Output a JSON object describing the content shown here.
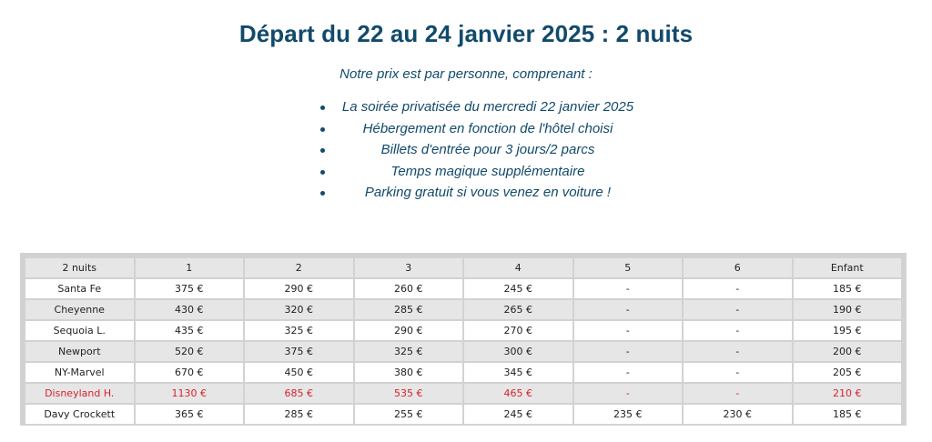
{
  "title": "Départ du 22 au 24 janvier 2025 : 2 nuits",
  "intro": "Notre prix est par personne, comprenant :",
  "bullets": [
    "La soirée privatisée du mercredi 22 janvier 2025",
    "Hébergement en fonction de l'hôtel choisi",
    "Billets d'entrée pour 3 jours/2 parcs",
    "Temps magique supplémentaire",
    "Parking gratuit si vous venez en voiture !"
  ],
  "colors": {
    "heading": "#124a6b",
    "highlight_row": "#d8222e",
    "table_border": "#d2d2d2",
    "row_alt": "#e6e6e6"
  },
  "table": {
    "headers": [
      "2 nuits",
      "1",
      "2",
      "3",
      "4",
      "5",
      "6",
      "Enfant"
    ],
    "rows": [
      [
        "Santa Fe",
        "375 €",
        "290 €",
        "260 €",
        "245 €",
        "-",
        "-",
        "185 €"
      ],
      [
        "Cheyenne",
        "430 €",
        "320 €",
        "285 €",
        "265 €",
        "-",
        "-",
        "190 €"
      ],
      [
        "Sequoia L.",
        "435 €",
        "325 €",
        "290 €",
        "270 €",
        "-",
        "-",
        "195 €"
      ],
      [
        "Newport",
        "520 €",
        "375 €",
        "325 €",
        "300 €",
        "-",
        "-",
        "200 €"
      ],
      [
        "NY-Marvel",
        "670 €",
        "450 €",
        "380 €",
        "345 €",
        "-",
        "-",
        "205 €"
      ],
      [
        "Disneyland H.",
        "1130 €",
        "685 €",
        "535 €",
        "465 €",
        "-",
        "-",
        "210 €"
      ],
      [
        "Davy Crockett",
        "365 €",
        "285 €",
        "255 €",
        "245 €",
        "235 €",
        "230 €",
        "185 €"
      ]
    ]
  }
}
